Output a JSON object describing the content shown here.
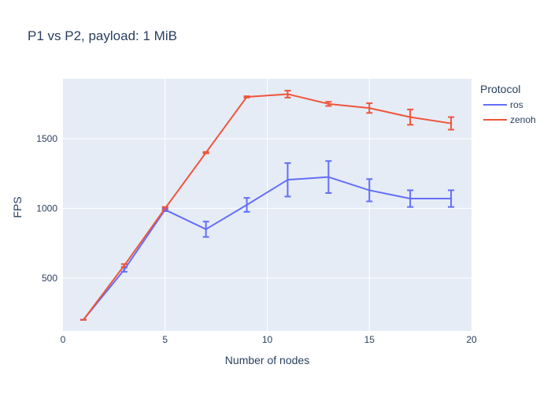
{
  "chart_data": {
    "type": "line",
    "title": "P1 vs P2, payload: 1 MiB",
    "xlabel": "Number of nodes",
    "ylabel": "FPS",
    "xlim": [
      0,
      20
    ],
    "ylim": [
      120,
      1930
    ],
    "x_ticks": [
      0,
      5,
      10,
      15,
      20
    ],
    "y_ticks": [
      500,
      1000,
      1500
    ],
    "grid": true,
    "legend": {
      "title": "Protocol",
      "placement": "top-right"
    },
    "series": [
      {
        "name": "ros",
        "color": "#636efa",
        "x": [
          1,
          3,
          5,
          7,
          9,
          11,
          13,
          15,
          17,
          19
        ],
        "y": [
          200,
          560,
          990,
          850,
          1025,
          1205,
          1225,
          1130,
          1070,
          1070
        ],
        "error": [
          0,
          15,
          10,
          55,
          50,
          120,
          115,
          80,
          60,
          60
        ]
      },
      {
        "name": "zenoh",
        "color": "#ef553b",
        "x": [
          1,
          3,
          5,
          7,
          9,
          11,
          13,
          15,
          17,
          19
        ],
        "y": [
          200,
          590,
          1000,
          1400,
          1800,
          1820,
          1750,
          1720,
          1655,
          1610
        ],
        "error": [
          0,
          10,
          10,
          5,
          5,
          25,
          15,
          35,
          55,
          45
        ]
      }
    ]
  }
}
